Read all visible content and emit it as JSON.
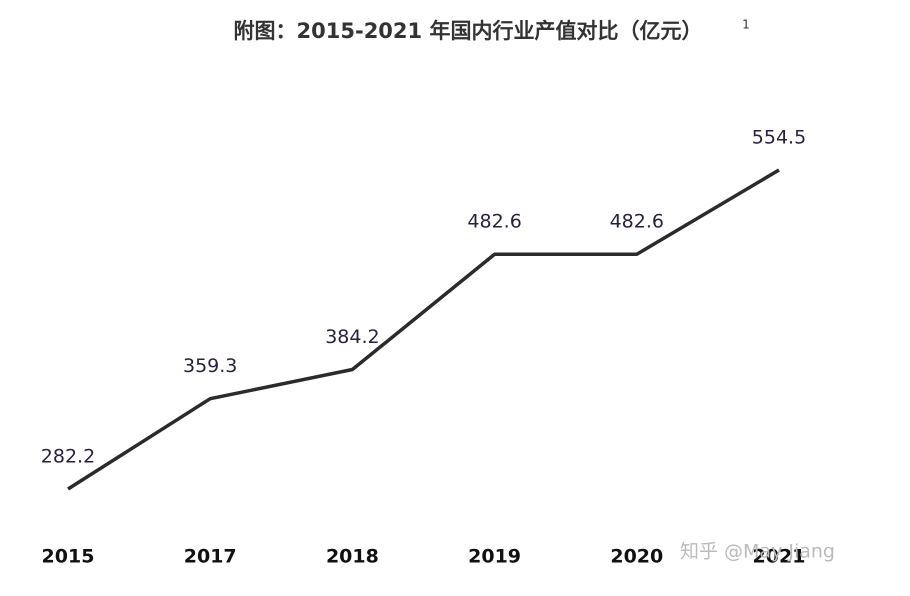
{
  "chart_data": {
    "type": "line",
    "title": "附图：2015-2021 年国内行业产值对比（亿元）",
    "title_note": "1",
    "watermark": "知乎 @May Jiang",
    "categories": [
      "2015",
      "2017",
      "2018",
      "2019",
      "2020",
      "2021"
    ],
    "values": [
      282.2,
      359.3,
      384.2,
      482.6,
      482.6,
      554.5
    ],
    "color": "#2b2b2b"
  }
}
